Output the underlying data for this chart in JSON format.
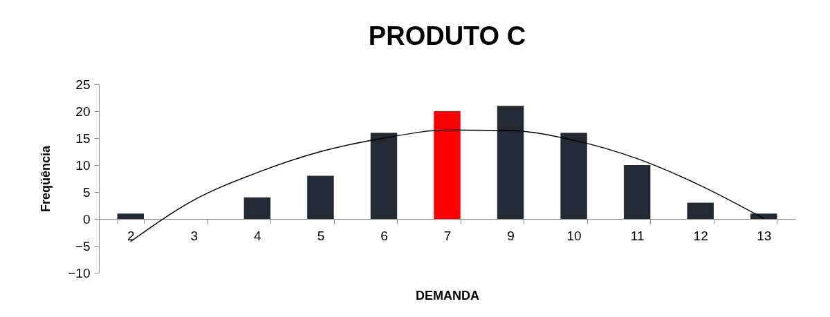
{
  "chart_data": {
    "type": "bar",
    "title": "PRODUTO C",
    "xlabel": "DEMANDA",
    "ylabel": "Freqüência",
    "categories": [
      "2",
      "3",
      "4",
      "5",
      "6",
      "7",
      "9",
      "10",
      "11",
      "12",
      "13"
    ],
    "series": [
      {
        "values": [
          1,
          0,
          4,
          8,
          16,
          20,
          21,
          16,
          10,
          3,
          1
        ],
        "colors": [
          "#222a35",
          "#222a35",
          "#222a35",
          "#222a35",
          "#222a35",
          "#ff0000",
          "#222a35",
          "#222a35",
          "#222a35",
          "#222a35",
          "#222a35"
        ]
      },
      {
        "type": "line",
        "color": "#000000",
        "values": [
          -4.2,
          3.5,
          8.6,
          12.5,
          15.0,
          16.5,
          16.4,
          14.6,
          11.2,
          6.2,
          0.1
        ]
      }
    ],
    "ylim": [
      -10,
      25
    ],
    "yticks": [
      -10,
      -5,
      0,
      5,
      10,
      15,
      20,
      25
    ],
    "grid": false,
    "legend": false
  }
}
